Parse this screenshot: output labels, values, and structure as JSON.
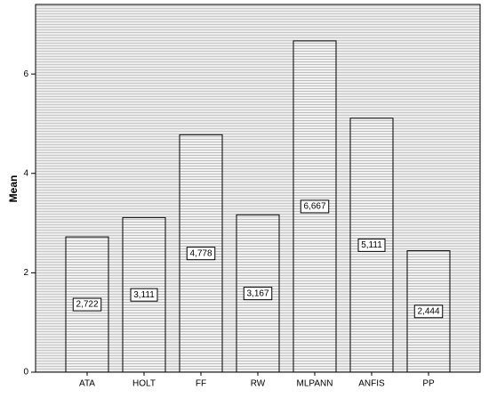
{
  "chart_data": {
    "type": "bar",
    "y_label": "Mean",
    "categories": [
      "ATA",
      "HOLT",
      "FF",
      "RW",
      "MLPANN",
      "ANFIS",
      "PP"
    ],
    "values": [
      2.722,
      3.111,
      4.778,
      3.167,
      6.667,
      5.111,
      2.444
    ],
    "value_labels": [
      "2,722",
      "3,111",
      "4,778",
      "3,167",
      "6,667",
      "5,111",
      "2,444"
    ],
    "color": "#d9d9d9",
    "ylim": [
      0,
      7.4
    ],
    "yticks": [
      0,
      2,
      4,
      6
    ]
  }
}
